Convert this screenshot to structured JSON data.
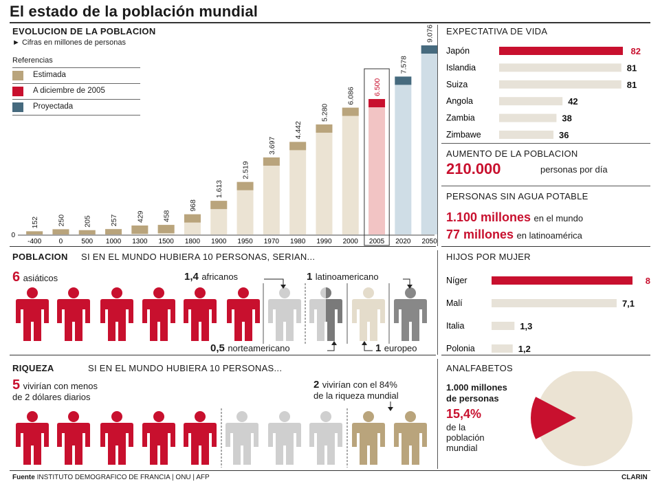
{
  "page_title": "El estado de la población mundial",
  "colors": {
    "red": "#c8102e",
    "estimated": "#b9a47c",
    "estimated_light": "#ebe3d3",
    "projected": "#466a7e",
    "projected_light": "#cfdde6",
    "red_light": "#f2c4c4",
    "grey": "#cfcfcf",
    "dark_grey": "#888888",
    "beige": "#e4dccb",
    "tan": "#b9a47c",
    "bar_grey": "#e7e2d8"
  },
  "evolution": {
    "heading": "EVOLUCION DE LA POBLACION",
    "subtitle": "► Cifras en millones de personas",
    "legend_title": "Referencias",
    "legend": [
      {
        "label": "Estimada",
        "color": "#b9a47c"
      },
      {
        "label": "A diciembre de 2005",
        "color": "#c8102e"
      },
      {
        "label": "Proyectada",
        "color": "#466a7e"
      }
    ]
  },
  "chart_data": {
    "type": "bar",
    "title": "EVOLUCION DE LA POBLACION",
    "subtitle": "Cifras en millones de personas",
    "categories": [
      "-400",
      "0",
      "500",
      "1000",
      "1300",
      "1500",
      "1800",
      "1900",
      "1950",
      "1970",
      "1980",
      "1990",
      "2000",
      "2005",
      "2020",
      "2050"
    ],
    "values": [
      152,
      250,
      205,
      257,
      429,
      458,
      968,
      1613,
      2519,
      3697,
      4442,
      5280,
      6086,
      6500,
      7578,
      9076
    ],
    "value_labels": [
      "152",
      "250",
      "205",
      "257",
      "429",
      "458",
      "968",
      "1.613",
      "2.519",
      "3.697",
      "4.442",
      "5.280",
      "6.086",
      "6.500",
      "7.578",
      "9.076"
    ],
    "status": [
      "Estimada",
      "Estimada",
      "Estimada",
      "Estimada",
      "Estimada",
      "Estimada",
      "Estimada",
      "Estimada",
      "Estimada",
      "Estimada",
      "Estimada",
      "Estimada",
      "Estimada",
      "A diciembre de 2005",
      "Proyectada",
      "Proyectada"
    ],
    "ylim": [
      0,
      9076
    ],
    "y_zero_label": "0",
    "highlight_category": "2005"
  },
  "life_expectancy": {
    "heading": "EXPECTATIVA DE VIDA",
    "items": [
      {
        "country": "Japón",
        "value": 82
      },
      {
        "country": "Islandia",
        "value": 81
      },
      {
        "country": "Suiza",
        "value": 81
      },
      {
        "country": "Angola",
        "value": 42
      },
      {
        "country": "Zambia",
        "value": 38
      },
      {
        "country": "Zimbawe",
        "value": 36
      }
    ]
  },
  "growth": {
    "heading": "AUMENTO DE LA POBLACION",
    "number": "210.000",
    "text": "personas por día"
  },
  "water": {
    "heading": "PERSONAS SIN AGUA POTABLE",
    "line1_num": "1.100 millones",
    "line1_text": "en el mundo",
    "line2_num": "77 millones",
    "line2_text": "en latinoamérica"
  },
  "population10": {
    "heading": "POBLACION",
    "subheading": "SI EN EL MUNDO HUBIERA 10 PERSONAS, SERIAN...",
    "asian_num": "6",
    "asian_text": "asiáticos",
    "african_num": "1,4",
    "african_text": "africanos",
    "latin_num": "1",
    "latin_text": "latinoamericano",
    "northam_num": "0,5",
    "northam_text": "norteamericano",
    "euro_num": "1",
    "euro_text": "europeo"
  },
  "children": {
    "heading": "HIJOS POR MUJER",
    "items": [
      {
        "country": "Níger",
        "value": 8,
        "label": "8"
      },
      {
        "country": "Malí",
        "value": 7.1,
        "label": "7,1"
      },
      {
        "country": "Italia",
        "value": 1.3,
        "label": "1,3"
      },
      {
        "country": "Polonia",
        "value": 1.2,
        "label": "1,2"
      }
    ]
  },
  "wealth": {
    "heading": "RIQUEZA",
    "subheading": "SI EN EL MUNDO HUBIERA 10 PERSONAS...",
    "poor_num": "5",
    "poor_text1": "vivirían con menos",
    "poor_text2": "de 2 dólares diarios",
    "rich_num": "2",
    "rich_text1": "vivirían con el 84%",
    "rich_text2": "de la riqueza mundial"
  },
  "illiteracy": {
    "heading": "ANALFABETOS",
    "line1": "1.000 millones",
    "line2": "de personas",
    "percent": "15,4%",
    "percent_value": 15.4,
    "text1": "de la",
    "text2": "población",
    "text3": "mundial"
  },
  "footer": {
    "source_label": "Fuente",
    "source_text": "INSTITUTO DEMOGRAFICO DE FRANCIA | ONU | AFP",
    "brand": "CLARIN"
  }
}
